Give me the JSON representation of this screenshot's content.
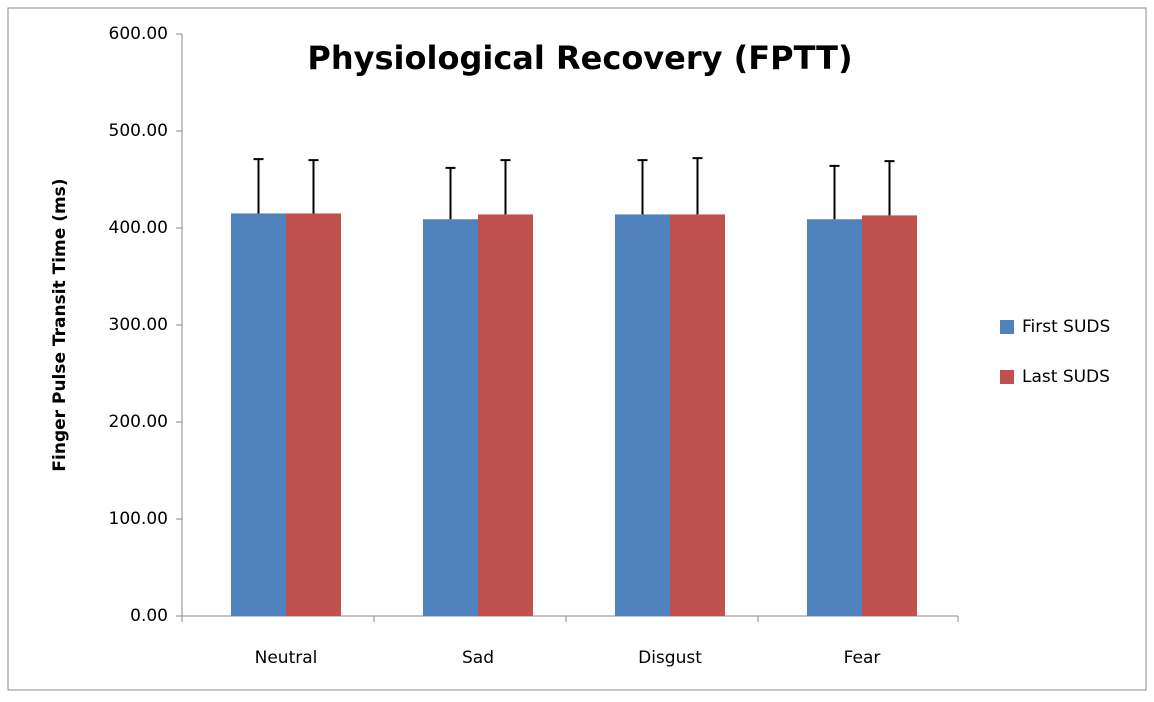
{
  "chart_data": {
    "type": "bar",
    "title": "Physiological Recovery (FPTT)",
    "y_label": "Finger Pulse Transit Time (ms)",
    "categories": [
      "Neutral",
      "Sad",
      "Disgust",
      "Fear"
    ],
    "series": [
      {
        "name": "First SUDS",
        "color": "#4f81bd",
        "values": [
          415,
          409,
          414,
          409
        ],
        "errors": [
          56,
          53,
          56,
          55
        ]
      },
      {
        "name": "Last SUDS",
        "color": "#c0504d",
        "values": [
          415,
          414,
          414,
          413
        ],
        "errors": [
          55,
          56,
          58,
          56
        ]
      }
    ],
    "ylim": [
      0,
      600
    ],
    "yticks": [
      {
        "value": 0,
        "label": "0.00"
      },
      {
        "value": 100,
        "label": "100.00"
      },
      {
        "value": 200,
        "label": "200.00"
      },
      {
        "value": 300,
        "label": "300.00"
      },
      {
        "value": 400,
        "label": "400.00"
      },
      {
        "value": 500,
        "label": "500.00"
      },
      {
        "value": 600,
        "label": "600.00"
      }
    ],
    "legend": "right"
  }
}
